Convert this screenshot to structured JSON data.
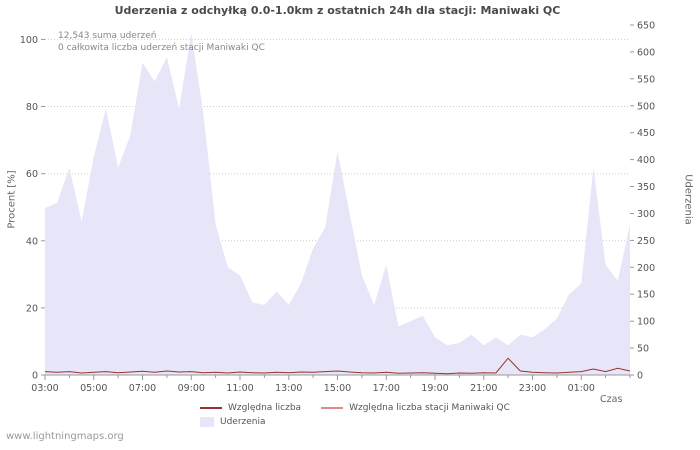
{
  "header": {
    "title": "Uderzenia z odchyłką 0.0-1.0km z ostatnich 24h dla stacji: Maniwaki QC"
  },
  "annotations": {
    "total_sum": "12,543 suma uderzeń",
    "station_sum": "0 całkowita liczba uderzeń stacji Maniwaki QC"
  },
  "axes": {
    "left_label": "Procent [%]",
    "right_label": "Uderzenia",
    "x_label": "Czas"
  },
  "legend": {
    "series1": "Względna liczba",
    "series2": "Względna liczba stacji Maniwaki QC",
    "series3": "Uderzenia"
  },
  "footer": {
    "watermark": "www.lightningmaps.org"
  },
  "chart_data": {
    "type": "area",
    "title": "Uderzenia z odchyłką 0.0-1.0km z ostatnich 24h dla stacji: Maniwaki QC",
    "xlabel": "Czas",
    "ylabel_left": "Procent [%]",
    "ylabel_right": "Uderzenia",
    "x_unit": "30-minute steps from 03:00 to 03:00 next day",
    "x_ticks": [
      "03:00",
      "05:00",
      "07:00",
      "09:00",
      "11:00",
      "13:00",
      "15:00",
      "17:00",
      "19:00",
      "21:00",
      "23:00",
      "01:00"
    ],
    "y_ticks_left": [
      0,
      20,
      40,
      60,
      80,
      100
    ],
    "y_ticks_right": [
      0,
      50,
      100,
      150,
      200,
      250,
      300,
      350,
      400,
      450,
      500,
      550,
      600,
      650
    ],
    "ylim_left": [
      0,
      104.3
    ],
    "ylim_right": [
      0,
      650
    ],
    "grid": "horizontal-dotted",
    "legend_position": "bottom-center",
    "series": [
      {
        "name": "Uderzenia",
        "type": "area",
        "axis": "right",
        "color": "#e7e5f8",
        "values": [
          310,
          320,
          385,
          285,
          405,
          495,
          385,
          445,
          580,
          545,
          590,
          495,
          635,
          485,
          280,
          200,
          185,
          135,
          130,
          155,
          130,
          170,
          235,
          275,
          415,
          300,
          185,
          130,
          205,
          90,
          100,
          110,
          70,
          55,
          60,
          75,
          55,
          70,
          55,
          75,
          70,
          85,
          105,
          150,
          170,
          385,
          205,
          175,
          280
        ]
      },
      {
        "name": "Względna liczba",
        "type": "line",
        "axis": "left",
        "color": "#993333",
        "values": [
          1,
          0.8,
          1,
          0.6,
          0.8,
          1,
          0.7,
          0.9,
          1.1,
          0.8,
          1.2,
          0.9,
          1,
          0.7,
          0.8,
          0.6,
          0.9,
          0.7,
          0.6,
          0.8,
          0.7,
          0.9,
          0.8,
          1,
          1.2,
          0.9,
          0.7,
          0.6,
          0.8,
          0.5,
          0.6,
          0.7,
          0.5,
          0.4,
          0.6,
          0.5,
          0.7,
          0.6,
          5,
          1.2,
          0.8,
          0.7,
          0.6,
          0.8,
          1,
          1.8,
          1,
          2,
          1.2
        ]
      },
      {
        "name": "Względna liczba stacji Maniwaki QC",
        "type": "line",
        "axis": "left",
        "color": "#dd8b8b",
        "values": [
          0,
          0,
          0,
          0,
          0,
          0,
          0,
          0,
          0,
          0,
          0,
          0,
          0,
          0,
          0,
          0,
          0,
          0,
          0,
          0,
          0,
          0,
          0,
          0,
          0,
          0,
          0,
          0,
          0,
          0,
          0,
          0,
          0,
          0,
          0,
          0,
          0,
          0,
          0,
          0,
          0,
          0,
          0,
          0,
          0,
          0,
          0,
          0,
          0
        ]
      }
    ]
  }
}
